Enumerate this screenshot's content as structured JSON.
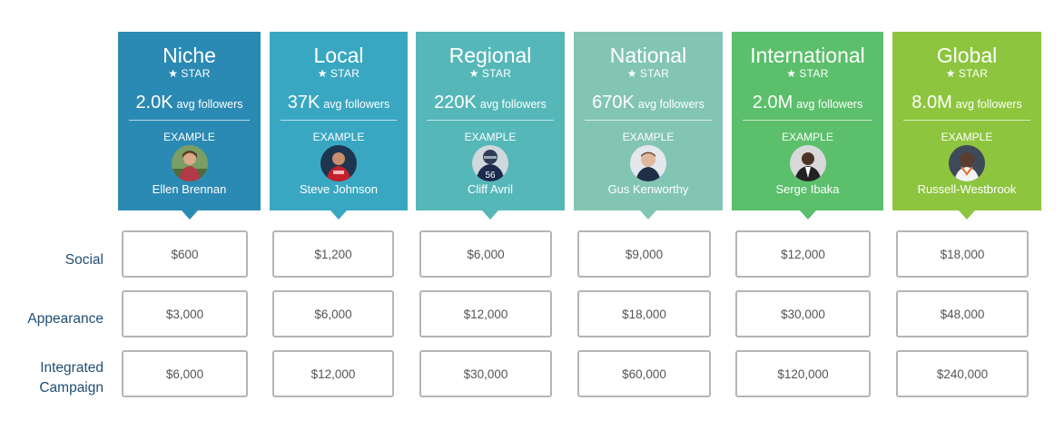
{
  "tiers": [
    {
      "name": "Niche",
      "star": "STAR",
      "followers": "2.0K",
      "followers_unit": "avg followers",
      "example_label": "EXAMPLE",
      "example_name": "Ellen Brennan",
      "color": "#2b8ab3"
    },
    {
      "name": "Local",
      "star": "STAR",
      "followers": "37K",
      "followers_unit": "avg followers",
      "example_label": "EXAMPLE",
      "example_name": "Steve Johnson",
      "color": "#3aa7c2"
    },
    {
      "name": "Regional",
      "star": "STAR",
      "followers": "220K",
      "followers_unit": "avg followers",
      "example_label": "EXAMPLE",
      "example_name": "Cliff Avril",
      "color": "#56b7b9"
    },
    {
      "name": "National",
      "star": "STAR",
      "followers": "670K",
      "followers_unit": "avg followers",
      "example_label": "EXAMPLE",
      "example_name": "Gus Kenworthy",
      "color": "#83c5b3"
    },
    {
      "name": "International",
      "star": "STAR",
      "followers": "2.0M",
      "followers_unit": "avg followers",
      "example_label": "EXAMPLE",
      "example_name": "Serge Ibaka",
      "color": "#5bbf6b"
    },
    {
      "name": "Global",
      "star": "STAR",
      "followers": "8.0M",
      "followers_unit": "avg followers",
      "example_label": "EXAMPLE",
      "example_name": "Russell-Westbrook",
      "color": "#8dc53e"
    }
  ],
  "rows": [
    {
      "label_lines": [
        "Social"
      ],
      "prices": [
        "$600",
        "$1,200",
        "$6,000",
        "$9,000",
        "$12,000",
        "$18,000"
      ]
    },
    {
      "label_lines": [
        "Appearance"
      ],
      "prices": [
        "$3,000",
        "$6,000",
        "$12,000",
        "$18,000",
        "$30,000",
        "$48,000"
      ]
    },
    {
      "label_lines": [
        "Integrated",
        "Campaign"
      ],
      "prices": [
        "$6,000",
        "$12,000",
        "$30,000",
        "$60,000",
        "$120,000",
        "$240,000"
      ]
    }
  ],
  "icons": {
    "star": "star-icon",
    "avatar": "avatar-photo"
  },
  "colors": {
    "label": "#1f4e73",
    "box_border": "#b5b5b5",
    "price_text": "#555555"
  }
}
